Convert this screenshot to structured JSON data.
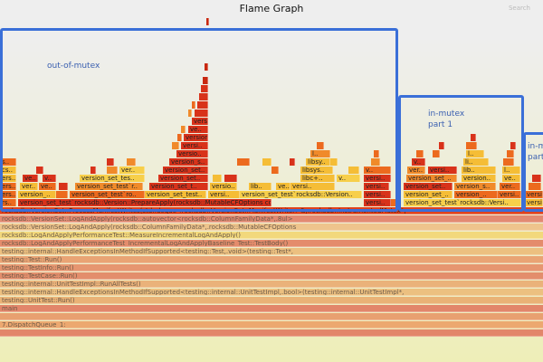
{
  "header": {
    "title": "Flame Graph",
    "search_label": "Search"
  },
  "annotations": {
    "out_of_mutex": "out-of-mutex",
    "in_mutex_part1": "in-mutex\npart 1",
    "in_mutex_part2": "in-m\npart"
  },
  "colors": {
    "annotation_box": "#3a6fd8",
    "hot": "#d8321a",
    "warm": "#f07a20",
    "cool": "#f5bd36"
  },
  "stack_rows": [
    "rocksdb::VersionSet::ProcessManifestWrites(std::deque<rocksdb::VersionSet::ManifestWriter>&,.rocksdb::InstrumentedMutex*,",
    "rocksdb::VersionSet::LogAndApply(rocksdb::autovector<rocksdb::ColumnFamilyData*,.8ul>",
    "rocksdb::VersionSet::LogAndApply(rocksdb::ColumnFamilyData*,.rocksdb::MutableCFOptions",
    "rocksdb::LogAndApplyPerformanceTest::MeasureIncrementalLogAndApply()",
    "rocksdb::LogAndApplyPerformanceTest_IncrementalLogAndApplyBaseline_Test::TestBody()",
    "testing::internal::HandleExceptionsInMethodIfSupported<testing::Test,.void>(testing::Test*,",
    "testing::Test::Run()",
    "testing::TestInfo::Run()",
    "testing::TestCase::Run()",
    "testing::internal::UnitTestImpl::RunAllTests()",
    "testing::internal::HandleExceptionsInMethodIfSupported<testing::internal::UnitTestImpl,.bool>(testing::internal::UnitTestImpl*,",
    "testing::UnitTest::Run()",
    "main",
    "",
    "7.DispatchQueue_1:",
    ""
  ],
  "frames": [
    "rs..",
    "version_set_test`rocksdb::Version::PrepareApply(rocksdb::MutableCFOptions const&,",
    "versi..",
    "v..",
    "version_set_test`rocksdb::Versi..",
    "versio",
    "ers..",
    "version_..",
    "version_set_test`ro..",
    "version_set_test..",
    "versi..",
    "version_set_test`rocksdb::Version..",
    "versi..",
    "version_set_..",
    "version_..",
    "versi..",
    "versio",
    "ers..",
    "ver..",
    "ve..",
    "version_set_test`r..",
    "version_set_t..",
    "versio..",
    "lib..",
    "ve..",
    "versi..",
    "versi..",
    "version_set..",
    "version_s..",
    "ver..",
    "ers..",
    "ve..",
    "v..",
    "version_set_tes..",
    "version_set..",
    "libc+..",
    "v..",
    "versi..",
    "version_set_..",
    "version..",
    "ve..",
    "cs..",
    "v..",
    "ver..",
    "version_set..",
    "libsys..",
    "v..",
    "ver..",
    "versi..",
    "lib..",
    "l..",
    "s..",
    "version_s..",
    "libsy..",
    "v..",
    "li..",
    "versio..",
    "l..",
    "l..",
    "versi..",
    "version",
    "ve..",
    "vers.."
  ]
}
